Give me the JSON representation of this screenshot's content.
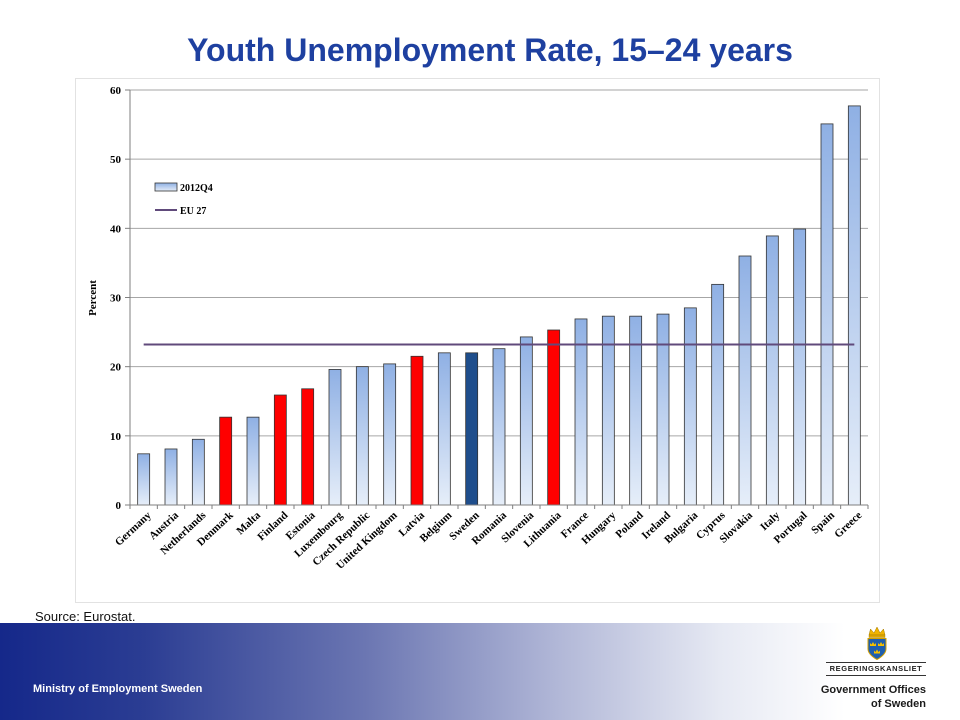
{
  "slide": {
    "source": "Source: Eurostat.",
    "footer_text": "Ministry of Employment Sweden"
  },
  "logo": {
    "icon": "coat-of-arms-icon",
    "wordmark": "REGERINGSKANSLIET",
    "name_line1": "Government Offices",
    "name_line2": "of Sweden"
  },
  "chart_data": {
    "type": "bar",
    "title": "Youth Unemployment Rate, 15–24 years",
    "categories": [
      "Germany",
      "Austria",
      "Netherlands",
      "Denmark",
      "Malta",
      "Finland",
      "Estonia",
      "Luxembourg",
      "Czech Republic",
      "United Kingdom",
      "Latvia",
      "Belgium",
      "Sweden",
      "Romania",
      "Slovenia",
      "Lithuania",
      "France",
      "Hungary",
      "Poland",
      "Ireland",
      "Bulgaria",
      "Cyprus",
      "Slovakia",
      "Italy",
      "Portugal",
      "Spain",
      "Greece"
    ],
    "series": [
      {
        "name": "2012Q4",
        "type": "bar",
        "values": [
          7.4,
          8.1,
          9.5,
          12.7,
          12.7,
          15.9,
          16.8,
          19.6,
          20.0,
          20.4,
          21.5,
          22.0,
          22.0,
          22.6,
          24.3,
          25.3,
          26.9,
          27.3,
          27.3,
          27.6,
          28.5,
          31.9,
          36.0,
          38.9,
          39.9,
          55.1,
          57.7
        ]
      },
      {
        "name": "EU 27",
        "type": "line",
        "values": [
          23.2,
          23.2,
          23.2,
          23.2,
          23.2,
          23.2,
          23.2,
          23.2,
          23.2,
          23.2,
          23.2,
          23.2,
          23.2,
          23.2,
          23.2,
          23.2,
          23.2,
          23.2,
          23.2,
          23.2,
          23.2,
          23.2,
          23.2,
          23.2,
          23.2,
          23.2,
          23.2
        ]
      }
    ],
    "xlabel": "",
    "ylabel": "Percent",
    "ylim": [
      0,
      60
    ],
    "yticks": [
      0,
      10,
      20,
      30,
      40,
      50,
      60
    ],
    "grid": true,
    "legend_position": "top-left",
    "bar_colors": [
      "#8fb0e4",
      "#8fb0e4",
      "#8fb0e4",
      "#ff0000",
      "#8fb0e4",
      "#ff0000",
      "#ff0000",
      "#8fb0e4",
      "#8fb0e4",
      "#8fb0e4",
      "#ff0000",
      "#8fb0e4",
      "#1f4e8c",
      "#8fb0e4",
      "#8fb0e4",
      "#ff0000",
      "#8fb0e4",
      "#8fb0e4",
      "#8fb0e4",
      "#8fb0e4",
      "#8fb0e4",
      "#8fb0e4",
      "#8fb0e4",
      "#8fb0e4",
      "#8fb0e4",
      "#8fb0e4",
      "#8fb0e4"
    ],
    "colors": {
      "bar_default_top": "#8fb0e4",
      "bar_default_bottom": "#e6eef9",
      "bar_highlight": "#ff0000",
      "bar_sweden": "#1f4e8c",
      "eu_line": "#604a7b"
    }
  }
}
